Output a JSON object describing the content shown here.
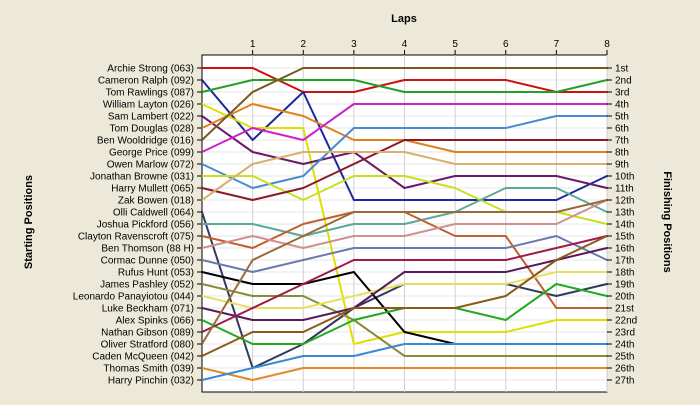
{
  "chart_data": {
    "type": "line",
    "title": "",
    "xlabel": "Laps",
    "ylabel_left": "Starting Positions",
    "ylabel_right": "Finishing Positions",
    "x": [
      0,
      1,
      2,
      3,
      4,
      5,
      6,
      7,
      8
    ],
    "x_tick_labels": [
      "1",
      "2",
      "3",
      "4",
      "5",
      "6",
      "7",
      "8"
    ],
    "ylim": [
      1,
      27
    ],
    "y_inverted": true,
    "grid": true,
    "drivers": [
      {
        "label": "Archie Strong (063)",
        "color": "#cc1111",
        "positions": [
          1,
          1,
          3,
          3,
          2,
          2,
          2,
          3,
          3
        ]
      },
      {
        "label": "Cameron Ralph (092)",
        "color": "#1a2a9a",
        "positions": [
          2,
          7,
          3,
          12,
          12,
          12,
          12,
          12,
          10
        ]
      },
      {
        "label": "Tom Rawlings (087)",
        "color": "#22a022",
        "positions": [
          3,
          2,
          2,
          2,
          3,
          3,
          3,
          3,
          2
        ]
      },
      {
        "label": "William Layton (026)",
        "color": "#e0e000",
        "positions": [
          4,
          6,
          6,
          24,
          23,
          23,
          23,
          22,
          22
        ]
      },
      {
        "label": "Sam Lambert (022)",
        "color": "#6a1a6a",
        "positions": [
          5,
          8,
          9,
          8,
          11,
          10,
          10,
          10,
          11
        ]
      },
      {
        "label": "Tom Douglas (028)",
        "color": "#e0821e",
        "positions": [
          6,
          4,
          5,
          7,
          7,
          8,
          8,
          8,
          8
        ]
      },
      {
        "label": "Ben Wooldridge (016)",
        "color": "#7a5a1a",
        "positions": [
          7,
          3,
          1,
          1,
          1,
          1,
          1,
          1,
          1
        ]
      },
      {
        "label": "George Price (099)",
        "color": "#cc22cc",
        "positions": [
          8,
          6,
          7,
          4,
          4,
          4,
          4,
          4,
          4
        ]
      },
      {
        "label": "Owen Marlow (072)",
        "color": "#4a8ad0",
        "positions": [
          9,
          11,
          10,
          6,
          6,
          6,
          6,
          5,
          5
        ]
      },
      {
        "label": "Jonathan Browne (031)",
        "color": "#c8e020",
        "positions": [
          10,
          10,
          12,
          10,
          10,
          11,
          13,
          13,
          14
        ]
      },
      {
        "label": "Harry Mullett (065)",
        "color": "#8a1a2a",
        "positions": [
          11,
          12,
          11,
          9,
          7,
          7,
          7,
          7,
          7
        ]
      },
      {
        "label": "Zak Bowen (018)",
        "color": "#d8b070",
        "positions": [
          12,
          9,
          8,
          8,
          8,
          9,
          9,
          9,
          9
        ]
      },
      {
        "label": "Olli Caldwell (064)",
        "color": "#303a5a",
        "positions": [
          13,
          26,
          24,
          21,
          19,
          19,
          19,
          20,
          19
        ]
      },
      {
        "label": "Joshua Pickford (056)",
        "color": "#5aaa9a",
        "positions": [
          14,
          14,
          15,
          14,
          14,
          13,
          11,
          11,
          13
        ]
      },
      {
        "label": "Clayton Ravenscroft (075)",
        "color": "#c06030",
        "positions": [
          15,
          16,
          14,
          13,
          13,
          15,
          15,
          21,
          21
        ]
      },
      {
        "label": "Ben Thomson (88 H)",
        "color": "#d09090",
        "positions": [
          16,
          15,
          16,
          15,
          15,
          14,
          14,
          14,
          12
        ]
      },
      {
        "label": "Cormac Dunne (050)",
        "color": "#6a7aaa",
        "positions": [
          17,
          18,
          17,
          16,
          16,
          16,
          16,
          15,
          17
        ]
      },
      {
        "label": "Rufus Hunt (053)",
        "color": "#000000",
        "positions": [
          18,
          19,
          19,
          18,
          23,
          24,
          24,
          24,
          24
        ]
      },
      {
        "label": "James Pashley (052)",
        "color": "#8a8a3a",
        "positions": [
          19,
          20,
          20,
          22,
          25,
          25,
          25,
          25,
          25
        ]
      },
      {
        "label": "Leonardo Panayiotou (044)",
        "color": "#e6e060",
        "positions": [
          20,
          21,
          21,
          20,
          19,
          19,
          19,
          18,
          18
        ]
      },
      {
        "label": "Luke Beckham (071)",
        "color": "#5a1a5a",
        "positions": [
          21,
          22,
          22,
          21,
          18,
          18,
          18,
          17,
          16
        ]
      },
      {
        "label": "Alex Spinks (066)",
        "color": "#22aa22",
        "positions": [
          22,
          24,
          24,
          22,
          21,
          21,
          22,
          19,
          20
        ]
      },
      {
        "label": "Nathan Gibson (089)",
        "color": "#a01a4a",
        "positions": [
          23,
          21,
          19,
          17,
          17,
          17,
          17,
          16,
          15
        ]
      },
      {
        "label": "Oliver Stratford (080)",
        "color": "#9a6a3a",
        "positions": [
          24,
          17,
          15,
          13,
          13,
          13,
          13,
          13,
          12
        ]
      },
      {
        "label": "Caden McQueen (042)",
        "color": "#8a5a1a",
        "positions": [
          25,
          23,
          23,
          21,
          21,
          21,
          20,
          17,
          15
        ]
      },
      {
        "label": "Thomas Smith (039)",
        "color": "#e08a2a",
        "positions": [
          26,
          27,
          26,
          26,
          26,
          26,
          26,
          26,
          26
        ]
      },
      {
        "label": "Harry Pinchin (032)",
        "color": "#3a8ad0",
        "positions": [
          27,
          26,
          25,
          25,
          24,
          24,
          24,
          24,
          24
        ]
      }
    ],
    "finishing_labels": [
      "1st",
      "2nd",
      "3rd",
      "4th",
      "5th",
      "6th",
      "7th",
      "8th",
      "9th",
      "10th",
      "11th",
      "12th",
      "13th",
      "14th",
      "15th",
      "16th",
      "17th",
      "18th",
      "19th",
      "20th",
      "21st",
      "22nd",
      "23rd",
      "24th",
      "25th",
      "26th",
      "27th"
    ]
  }
}
